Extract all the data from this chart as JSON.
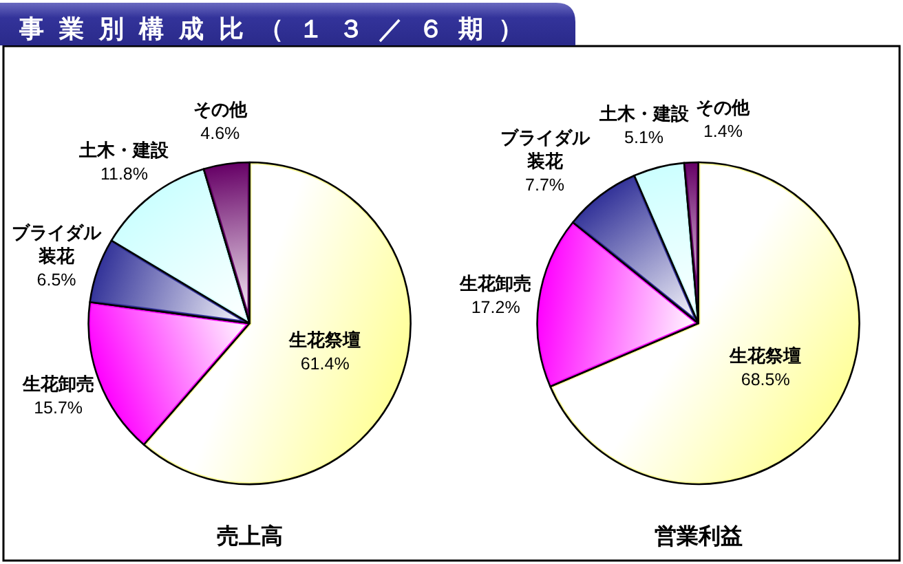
{
  "chart_data": [
    {
      "type": "pie",
      "title": "事業別構成比（１３／６期）",
      "xlabel": "売上高",
      "categories": [
        "生花祭壇",
        "生花卸売",
        "ブライダル装花",
        "土木・建設",
        "その他"
      ],
      "values": [
        61.4,
        15.7,
        6.5,
        11.8,
        4.6
      ],
      "value_labels": [
        "61.4%",
        "15.7%",
        "6.5%",
        "11.8%",
        "4.6%"
      ],
      "colors": [
        "#ffff99",
        "#ff00ff",
        "#333399",
        "#ccffff",
        "#660066"
      ]
    },
    {
      "type": "pie",
      "xlabel": "営業利益",
      "categories": [
        "生花祭壇",
        "生花卸売",
        "ブライダル装花",
        "土木・建設",
        "その他"
      ],
      "values": [
        68.5,
        17.2,
        7.7,
        5.1,
        1.4
      ],
      "value_labels": [
        "68.5%",
        "17.2%",
        "7.7%",
        "5.1%",
        "1.4%"
      ],
      "colors": [
        "#ffff99",
        "#ff00ff",
        "#333399",
        "#ccffff",
        "#660066"
      ]
    }
  ]
}
